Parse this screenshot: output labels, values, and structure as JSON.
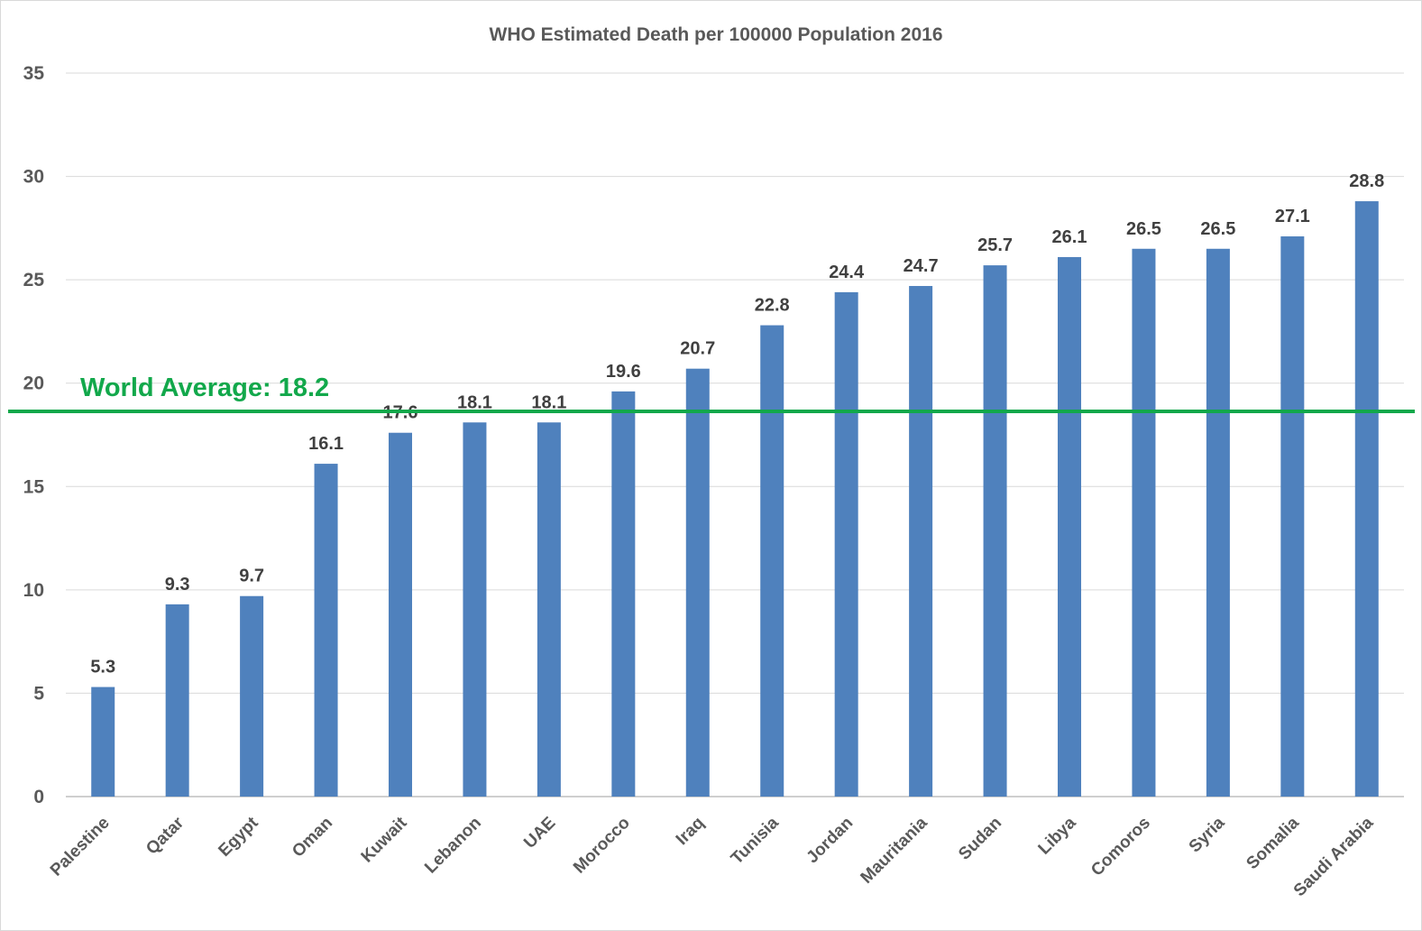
{
  "chart_data": {
    "type": "bar",
    "title": "WHO Estimated Death per 100000 Population 2016",
    "categories": [
      "Palestine",
      "Qatar",
      "Egypt",
      "Oman",
      "Kuwait",
      "Lebanon",
      "UAE",
      "Morocco",
      "Iraq",
      "Tunisia",
      "Jordan",
      "Mauritania",
      "Sudan",
      "Libya",
      "Comoros",
      "Syria",
      "Somalia",
      "Saudi Arabia"
    ],
    "values": [
      5.3,
      9.3,
      9.7,
      16.1,
      17.6,
      18.1,
      18.1,
      19.6,
      20.7,
      22.8,
      24.4,
      24.7,
      25.7,
      26.1,
      26.5,
      26.5,
      27.1,
      28.8
    ],
    "data_labels": [
      "5.3",
      "9.3",
      "9.7",
      "16.1",
      "17.6",
      "18.1",
      "18.1",
      "19.6",
      "20.7",
      "22.8",
      "24.4",
      "24.7",
      "25.7",
      "26.1",
      "26.5",
      "26.5",
      "27.1",
      "28.8"
    ],
    "yticks": [
      "0",
      "5",
      "10",
      "15",
      "20",
      "25",
      "30",
      "35"
    ],
    "ylim": [
      0,
      35
    ],
    "grid": true,
    "legend": "none",
    "bar_color": "#4f81bd",
    "reference_line": {
      "value": 18.2,
      "label": "World Average: 18.2",
      "color": "#12a84b"
    }
  }
}
